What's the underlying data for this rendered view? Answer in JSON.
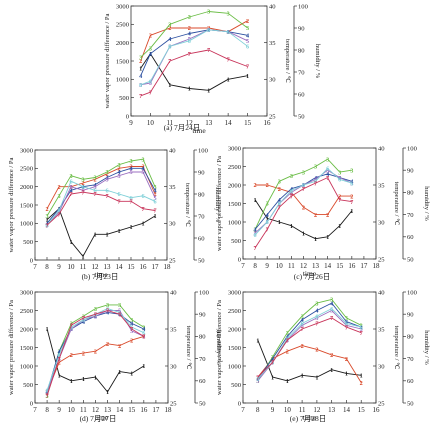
{
  "colors": {
    "axis": "#333333",
    "s1": "#1a1a1a",
    "s2": "#d94a2b",
    "s3": "#6abd45",
    "s4": "#2b4fa0",
    "s5": "#9b6fc0",
    "s6": "#7fd0d8",
    "s7": "#c8345a"
  },
  "chart_data": [
    {
      "type": "line",
      "caption": "(a) 7月24日",
      "xlabel": "time",
      "ylabel": "water vapor pressure difference / Pa",
      "ylabel2": "temperature / ℃",
      "ylabel3": "humidity / %",
      "xlim": [
        9,
        16
      ],
      "ylim": [
        0,
        3000
      ],
      "y2lim": [
        25,
        40
      ],
      "y3lim": [
        50,
        100
      ],
      "xticks": [
        "9",
        "10",
        "11",
        "12",
        "13",
        "14",
        "15",
        "16"
      ],
      "yticks": [
        "0",
        "500",
        "1000",
        "1500",
        "2000",
        "2500",
        "3000"
      ],
      "y2ticks": [
        "25",
        "30",
        "35",
        "40"
      ],
      "y3ticks": [
        "50",
        "60",
        "70",
        "80",
        "90",
        "100"
      ],
      "series": [
        {
          "marker": "1",
          "x": [
            9.5,
            10,
            11,
            12,
            13,
            14,
            15
          ],
          "y": [
            1300,
            1700,
            850,
            750,
            700,
            1000,
            1100
          ]
        },
        {
          "marker": "2",
          "x": [
            9.5,
            10,
            11,
            12,
            13,
            14,
            15
          ],
          "y": [
            1500,
            2200,
            2400,
            2400,
            2400,
            2300,
            2600
          ]
        },
        {
          "marker": "3",
          "x": [
            9.5,
            10,
            11,
            12,
            13,
            14,
            15
          ],
          "y": [
            1600,
            1850,
            2500,
            2700,
            2850,
            2800,
            2400
          ]
        },
        {
          "marker": "4",
          "x": [
            9.5,
            10,
            11,
            12,
            13,
            14,
            15
          ],
          "y": [
            1100,
            1700,
            2100,
            2250,
            2350,
            2300,
            2200
          ]
        },
        {
          "marker": "5",
          "x": [
            9.5,
            10,
            11,
            12,
            13,
            14,
            15
          ],
          "y": [
            850,
            900,
            1900,
            2100,
            2350,
            2300,
            2050
          ]
        },
        {
          "marker": "6",
          "x": [
            9.5,
            10,
            11,
            12,
            13,
            14,
            15
          ],
          "y": [
            850,
            950,
            1900,
            2050,
            2350,
            2300,
            1900
          ]
        },
        {
          "marker": "7",
          "x": [
            9.5,
            10,
            11,
            12,
            13,
            14,
            15
          ],
          "y": [
            550,
            650,
            1500,
            1700,
            1800,
            1550,
            1350
          ]
        }
      ]
    },
    {
      "type": "line",
      "caption": "(b) 7月23日",
      "xlabel": "time",
      "ylabel": "water vapor pressure difference / Pa",
      "ylabel2": "temperature / ℃",
      "ylabel3": "humidity / %",
      "xlim": [
        7,
        18
      ],
      "ylim": [
        0,
        3000
      ],
      "y2lim": [
        25,
        40
      ],
      "y3lim": [
        50,
        100
      ],
      "xticks": [
        "7",
        "8",
        "9",
        "10",
        "11",
        "12",
        "13",
        "14",
        "15",
        "16",
        "17",
        "18"
      ],
      "yticks": [
        "0",
        "500",
        "1000",
        "1500",
        "2000",
        "2500",
        "3000"
      ],
      "y2ticks": [
        "25",
        "30",
        "35",
        "40"
      ],
      "y3ticks": [
        "50",
        "60",
        "70",
        "80",
        "90",
        "100"
      ],
      "series": [
        {
          "marker": "1",
          "x": [
            8,
            9,
            10,
            11,
            12,
            13,
            14,
            15,
            16,
            17
          ],
          "y": [
            1100,
            1400,
            500,
            100,
            700,
            700,
            800,
            900,
            1000,
            1200
          ]
        },
        {
          "marker": "2",
          "x": [
            8,
            9,
            10,
            11,
            12,
            13,
            14,
            15,
            16,
            17
          ],
          "y": [
            1400,
            2000,
            2000,
            2100,
            2200,
            2350,
            2500,
            2550,
            2550,
            1800
          ]
        },
        {
          "marker": "3",
          "x": [
            8,
            9,
            10,
            11,
            12,
            13,
            14,
            15,
            16,
            17
          ],
          "y": [
            1200,
            1750,
            2300,
            2200,
            2250,
            2400,
            2600,
            2700,
            2750,
            2000
          ]
        },
        {
          "marker": "4",
          "x": [
            8,
            9,
            10,
            11,
            12,
            13,
            14,
            15,
            16,
            17
          ],
          "y": [
            1000,
            1400,
            1900,
            2000,
            2050,
            2250,
            2400,
            2500,
            2500,
            1900
          ]
        },
        {
          "marker": "5",
          "x": [
            8,
            9,
            10,
            11,
            12,
            13,
            14,
            15,
            16,
            17
          ],
          "y": [
            950,
            1300,
            2000,
            1900,
            2000,
            2200,
            2300,
            2400,
            2400,
            1700
          ]
        },
        {
          "marker": "6",
          "x": [
            8,
            9,
            10,
            11,
            12,
            13,
            14,
            15,
            16,
            17
          ],
          "y": [
            950,
            1350,
            2150,
            2000,
            1900,
            1900,
            1800,
            1700,
            1750,
            1600
          ]
        },
        {
          "marker": "7",
          "x": [
            8,
            9,
            10,
            11,
            12,
            13,
            14,
            15,
            16,
            17
          ],
          "y": [
            950,
            1250,
            1800,
            1850,
            1800,
            1750,
            1600,
            1600,
            1400,
            1350
          ]
        }
      ]
    },
    {
      "type": "line",
      "caption": "(c) 7月26日",
      "xlabel": "time",
      "ylabel": "water vapor pressure difference / Pa",
      "ylabel2": "temperature / ℃",
      "ylabel3": "humidity / %",
      "xlim": [
        7,
        18
      ],
      "ylim": [
        0,
        3000
      ],
      "y2lim": [
        25,
        40
      ],
      "y3lim": [
        50,
        100
      ],
      "xticks": [
        "7",
        "8",
        "9",
        "10",
        "11",
        "12",
        "13",
        "14",
        "15",
        "16",
        "17",
        "18"
      ],
      "yticks": [
        "0",
        "500",
        "1000",
        "1500",
        "2000",
        "2500",
        "3000"
      ],
      "y2ticks": [
        "25",
        "30",
        "35",
        "40"
      ],
      "y3ticks": [
        "50",
        "60",
        "70",
        "80",
        "90",
        "100"
      ],
      "series": [
        {
          "marker": "1",
          "x": [
            8,
            9,
            10,
            11,
            12,
            13,
            14,
            15,
            16
          ],
          "y": [
            1600,
            1100,
            1000,
            900,
            700,
            550,
            600,
            900,
            1300
          ]
        },
        {
          "marker": "2",
          "x": [
            8,
            9,
            10,
            11,
            12,
            13,
            14,
            15,
            16
          ],
          "y": [
            2000,
            2000,
            1900,
            1800,
            1400,
            1200,
            1200,
            1700,
            1700
          ]
        },
        {
          "marker": "3",
          "x": [
            8,
            9,
            10,
            11,
            12,
            13,
            14,
            15,
            16
          ],
          "y": [
            800,
            1500,
            2100,
            2250,
            2350,
            2500,
            2700,
            2350,
            2400
          ]
        },
        {
          "marker": "4",
          "x": [
            8,
            9,
            10,
            11,
            12,
            13,
            14,
            15,
            16
          ],
          "y": [
            800,
            1200,
            1600,
            1900,
            2000,
            2200,
            2300,
            2200,
            2100
          ]
        },
        {
          "marker": "5",
          "x": [
            8,
            9,
            10,
            11,
            12,
            13,
            14,
            15,
            16
          ],
          "y": [
            700,
            1000,
            1500,
            1800,
            2000,
            2150,
            2400,
            2200,
            2050
          ]
        },
        {
          "marker": "6",
          "x": [
            8,
            9,
            10,
            11,
            12,
            13,
            14,
            15,
            16
          ],
          "y": [
            650,
            1000,
            1500,
            1850,
            2000,
            2100,
            2450,
            2150,
            2050
          ]
        },
        {
          "marker": "7",
          "x": [
            8,
            9,
            10,
            11,
            12,
            13,
            14,
            15,
            16
          ],
          "y": [
            300,
            800,
            1400,
            1700,
            1900,
            2050,
            2200,
            1600,
            1550
          ]
        }
      ]
    },
    {
      "type": "line",
      "caption": "(d) 7月27日",
      "xlabel": "time",
      "ylabel": "water vapor pressure difference / Pa",
      "ylabel2": "temperature / ℃",
      "ylabel3": "humidity / %",
      "xlim": [
        7,
        18
      ],
      "ylim": [
        0,
        3000
      ],
      "y2lim": [
        25,
        40
      ],
      "y3lim": [
        50,
        100
      ],
      "xticks": [
        "7",
        "8",
        "9",
        "10",
        "11",
        "12",
        "13",
        "14",
        "15",
        "16",
        "17",
        "18"
      ],
      "yticks": [
        "0",
        "500",
        "1000",
        "1500",
        "2000",
        "2500",
        "3000"
      ],
      "y2ticks": [
        "25",
        "30",
        "35",
        "40"
      ],
      "y3ticks": [
        "50",
        "60",
        "70",
        "80",
        "90",
        "100"
      ],
      "series": [
        {
          "marker": "1",
          "x": [
            8,
            9,
            10,
            11,
            12,
            13,
            14,
            15,
            16
          ],
          "y": [
            2000,
            750,
            600,
            650,
            700,
            300,
            850,
            800,
            1000
          ]
        },
        {
          "marker": "2",
          "x": [
            8,
            9,
            10,
            11,
            12,
            13,
            14,
            15,
            16
          ],
          "y": [
            300,
            1100,
            1300,
            1350,
            1400,
            1600,
            1550,
            1700,
            1800
          ]
        },
        {
          "marker": "3",
          "x": [
            8,
            9,
            10,
            11,
            12,
            13,
            14,
            15,
            16
          ],
          "y": [
            200,
            1400,
            2150,
            2350,
            2550,
            2650,
            2650,
            2250,
            2050
          ]
        },
        {
          "marker": "4",
          "x": [
            8,
            9,
            10,
            11,
            12,
            13,
            14,
            15,
            16
          ],
          "y": [
            300,
            1400,
            2000,
            2200,
            2350,
            2450,
            2400,
            2150,
            2000
          ]
        },
        {
          "marker": "5",
          "x": [
            8,
            9,
            10,
            11,
            12,
            13,
            14,
            15,
            16
          ],
          "y": [
            300,
            1200,
            2000,
            2250,
            2350,
            2500,
            2500,
            1950,
            1800
          ]
        },
        {
          "marker": "6",
          "x": [
            8,
            9,
            10,
            11,
            12,
            13,
            14,
            15,
            16
          ],
          "y": [
            350,
            1300,
            2050,
            2250,
            2400,
            2550,
            2450,
            2050,
            1900
          ]
        },
        {
          "marker": "7",
          "x": [
            8,
            9,
            10,
            11,
            12,
            13,
            14,
            15,
            16
          ],
          "y": [
            200,
            1200,
            2100,
            2300,
            2400,
            2500,
            2400,
            2000,
            1800
          ]
        }
      ]
    },
    {
      "type": "line",
      "caption": "(e) 7月28日",
      "xlabel": "time",
      "ylabel": "water vapor pressure difference / Pa",
      "ylabel2": "temperature / ℃",
      "ylabel3": "humidity / %",
      "xlim": [
        7,
        16
      ],
      "ylim": [
        0,
        3000
      ],
      "y2lim": [
        25,
        40
      ],
      "y3lim": [
        50,
        100
      ],
      "xticks": [
        "7",
        "8",
        "9",
        "10",
        "11",
        "12",
        "13",
        "14",
        "15",
        "16"
      ],
      "yticks": [
        "0",
        "500",
        "1000",
        "1500",
        "2000",
        "2500",
        "3000"
      ],
      "y2ticks": [
        "25",
        "30",
        "35",
        "40"
      ],
      "y3ticks": [
        "50",
        "60",
        "70",
        "80",
        "90",
        "100"
      ],
      "series": [
        {
          "marker": "1",
          "x": [
            8,
            9,
            10,
            11,
            12,
            13,
            14,
            15
          ],
          "y": [
            1700,
            700,
            600,
            750,
            700,
            900,
            800,
            750
          ]
        },
        {
          "marker": "2",
          "x": [
            8,
            9,
            10,
            11,
            12,
            13,
            14,
            15
          ],
          "y": [
            700,
            1200,
            1400,
            1550,
            1450,
            1300,
            1200,
            550
          ]
        },
        {
          "marker": "3",
          "x": [
            8,
            9,
            10,
            11,
            12,
            13,
            14,
            15
          ],
          "y": [
            600,
            1250,
            1900,
            2350,
            2700,
            2800,
            2300,
            2100
          ]
        },
        {
          "marker": "4",
          "x": [
            8,
            9,
            10,
            11,
            12,
            13,
            14,
            15
          ],
          "y": [
            650,
            1200,
            1800,
            2250,
            2500,
            2700,
            2200,
            2050
          ]
        },
        {
          "marker": "5",
          "x": [
            8,
            9,
            10,
            11,
            12,
            13,
            14,
            15
          ],
          "y": [
            600,
            1100,
            1700,
            2100,
            2300,
            2500,
            2100,
            2000
          ]
        },
        {
          "marker": "6",
          "x": [
            8,
            9,
            10,
            11,
            12,
            13,
            14,
            15
          ],
          "y": [
            650,
            1100,
            1750,
            2150,
            2350,
            2550,
            2150,
            2050
          ]
        },
        {
          "marker": "7",
          "x": [
            8,
            9,
            10,
            11,
            12,
            13,
            14,
            15
          ],
          "y": [
            700,
            1100,
            1700,
            2000,
            2150,
            2300,
            2050,
            1900
          ]
        }
      ]
    }
  ]
}
